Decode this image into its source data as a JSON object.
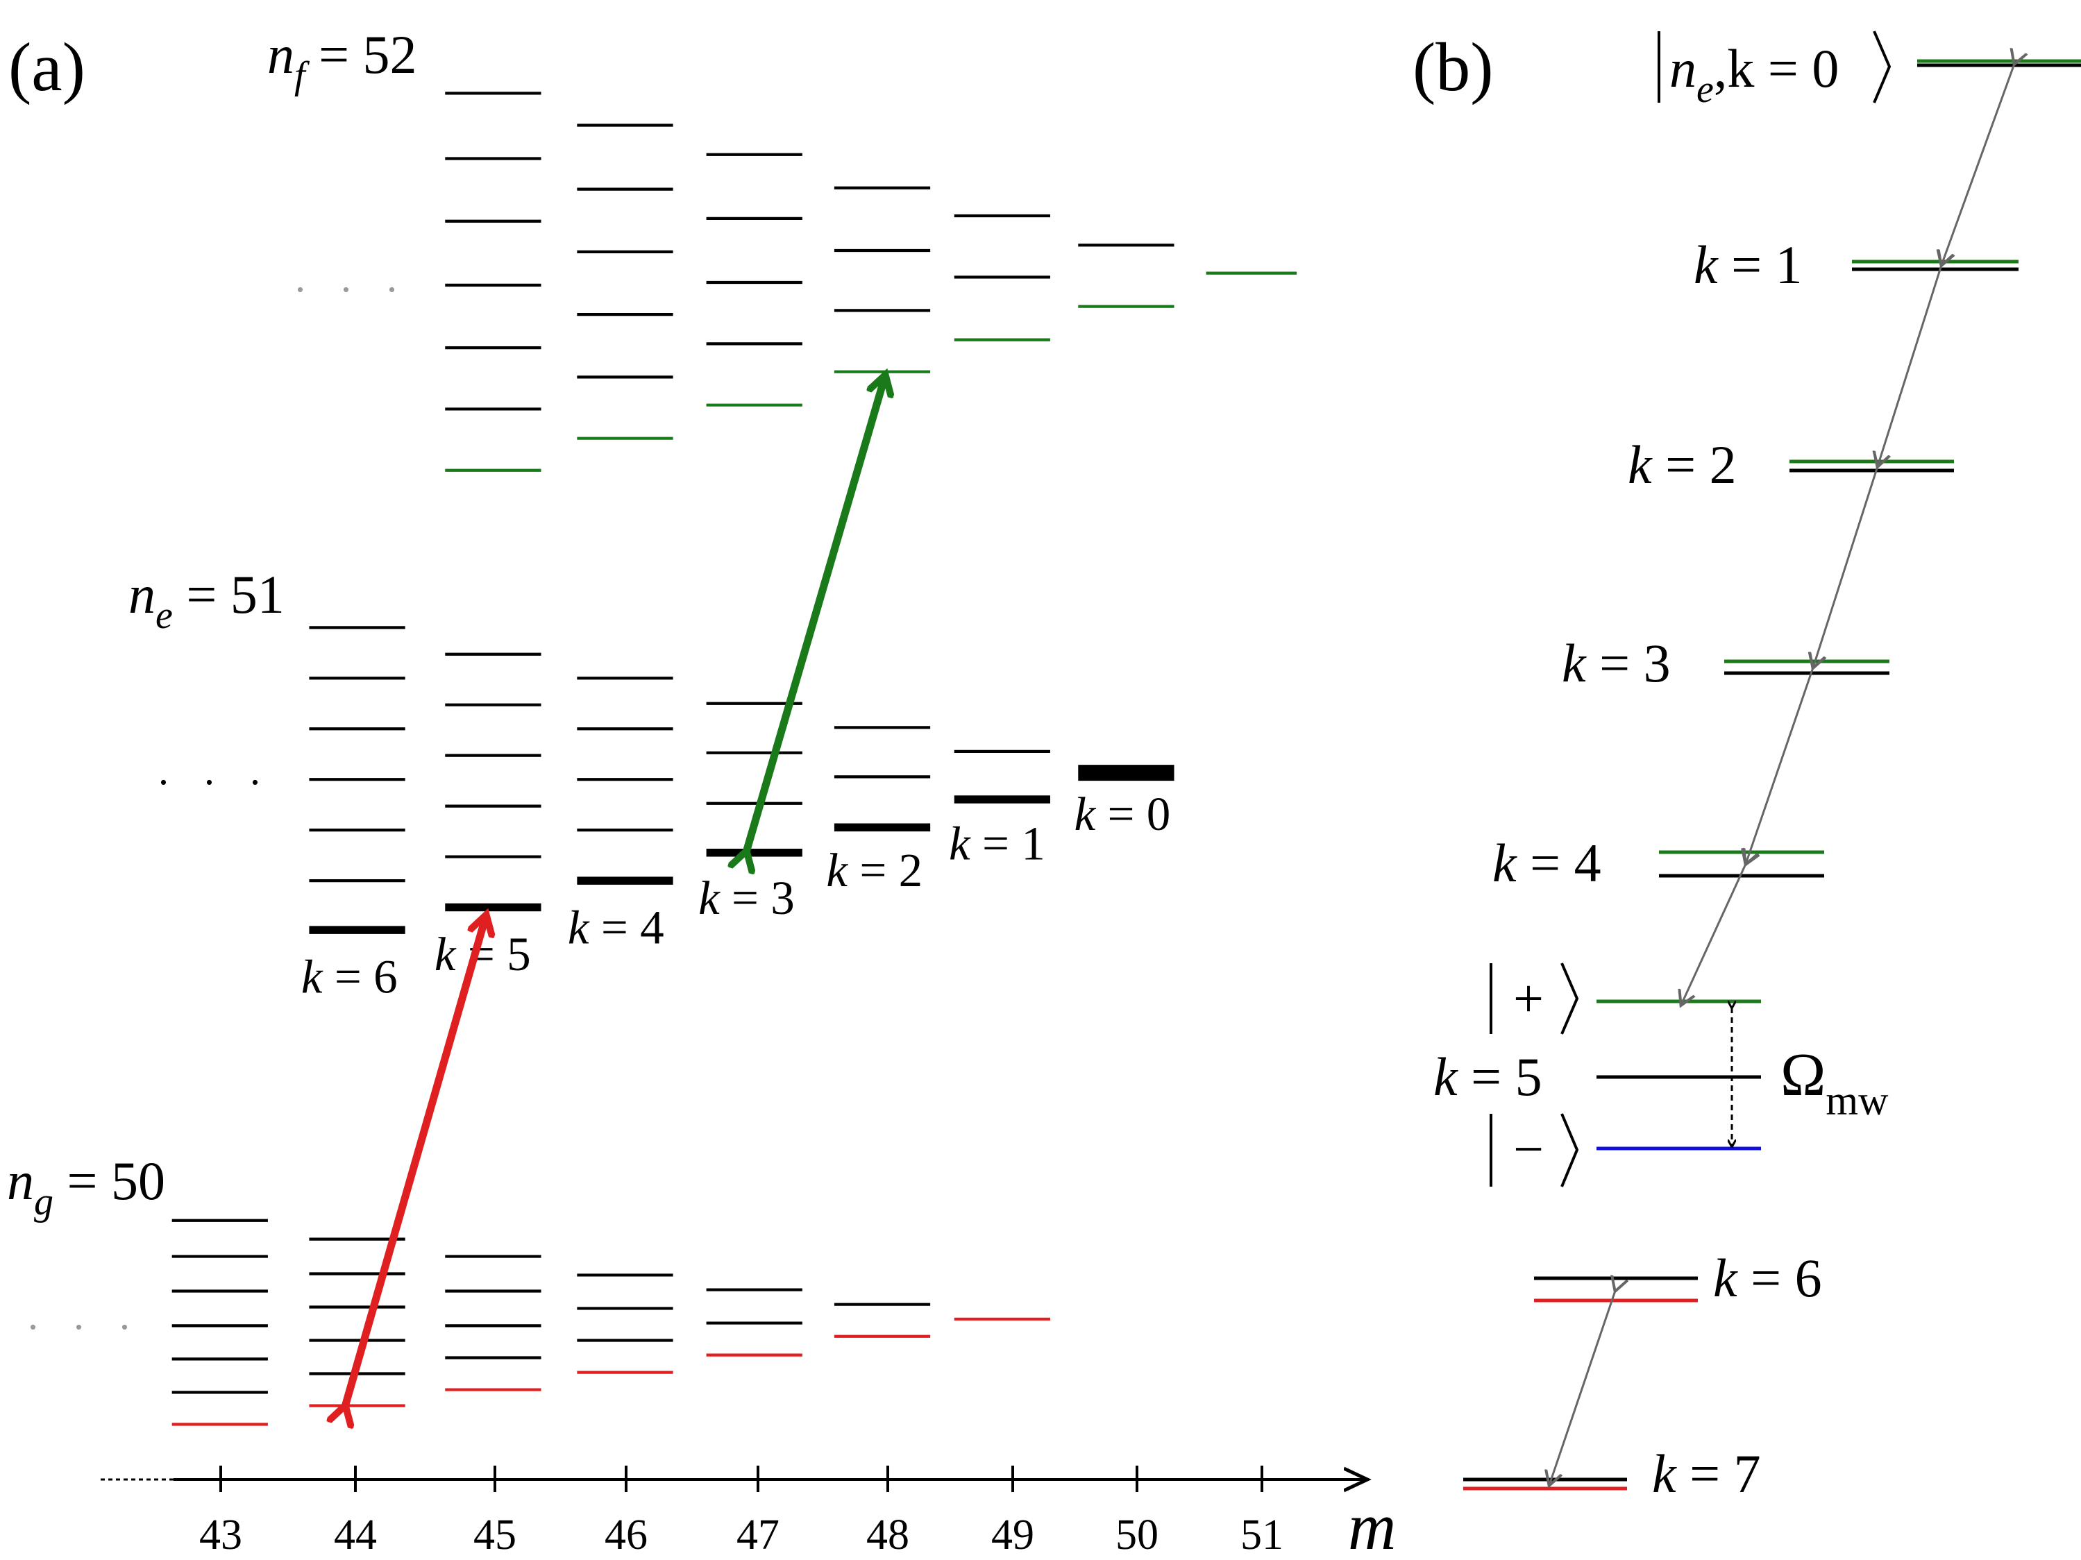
{
  "panel_a": {
    "panel_label": "(a)",
    "nf_label": {
      "var": "n",
      "sub": "f",
      "rest": " = 52"
    },
    "ne_label": {
      "var": "n",
      "sub": "e",
      "rest": " = 51"
    },
    "ng_label": {
      "var": "n",
      "sub": "g",
      "rest": " = 50"
    },
    "axis_var": "m",
    "m_ticks": [
      "43",
      "44",
      "45",
      "46",
      "47",
      "48",
      "49",
      "50",
      "51"
    ],
    "ne_k_labels": [
      {
        "k": "6",
        "text": " = 6"
      },
      {
        "k": "5",
        "text": " = 5"
      },
      {
        "k": "4",
        "text": " = 4"
      },
      {
        "k": "3",
        "text": " = 3"
      },
      {
        "k": "2",
        "text": " = 2"
      },
      {
        "k": "1",
        "text": " = 1"
      },
      {
        "k": "0",
        "text": " = 0"
      }
    ],
    "ellipsis": ". . ."
  },
  "panel_b": {
    "panel_label": "(b)",
    "top_ket": {
      "n": "n",
      "sub": "e",
      "rest": ",k = 0"
    },
    "k_labels": [
      {
        "text": " = 1"
      },
      {
        "text": " = 2"
      },
      {
        "text": " = 3"
      },
      {
        "text": " = 4"
      },
      {
        "text": " = 5"
      },
      {
        "text": " = 6"
      },
      {
        "text": " = 7"
      }
    ],
    "plus_ket": "+",
    "minus_ket": "−",
    "omega_symbol": "Ω",
    "omega_sub": "mw",
    "k_var": "k"
  },
  "colors": {
    "green": "#1a7a1a",
    "red": "#e02020",
    "blue": "#1010d8",
    "gray": "#666666"
  }
}
